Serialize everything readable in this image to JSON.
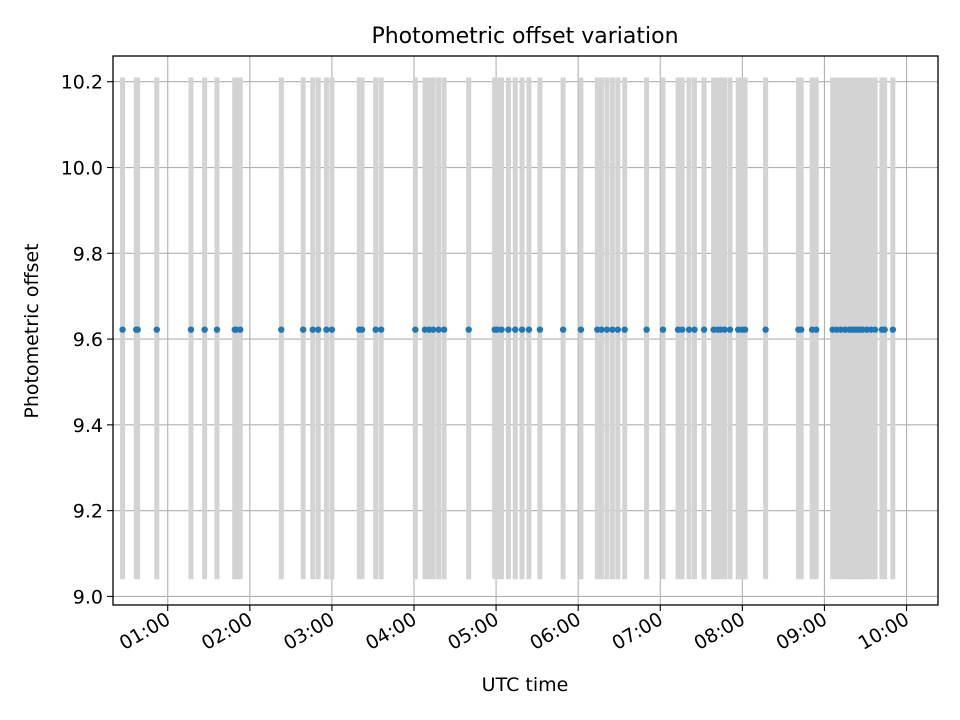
{
  "chart_data": {
    "type": "scatter",
    "title": "Photometric offset variation",
    "xlabel": "UTC time",
    "ylabel": "Photometric offset",
    "xlim": [
      "00:20",
      "10:23"
    ],
    "ylim": [
      8.98,
      10.26
    ],
    "grid": true,
    "x_ticks": [
      "01:00",
      "02:00",
      "03:00",
      "04:00",
      "05:00",
      "06:00",
      "07:00",
      "08:00",
      "09:00",
      "10:00"
    ],
    "y_ticks": [
      9.0,
      9.2,
      9.4,
      9.6,
      9.8,
      10.0,
      10.2
    ],
    "y_tick_labels": [
      "9.0",
      "9.2",
      "9.4",
      "9.6",
      "9.8",
      "10.0",
      "10.2"
    ],
    "error_low": 9.04,
    "error_high": 10.21,
    "colors": {
      "points": "#1f77b4",
      "error_bars": "#d3d3d3"
    },
    "series": [
      {
        "y_constant": 9.622,
        "x": [
          "00:27",
          "00:37",
          "00:38",
          "00:52",
          "01:17",
          "01:27",
          "01:36",
          "01:49",
          "01:50",
          "01:53",
          "02:23",
          "02:39",
          "02:46",
          "02:50",
          "02:56",
          "03:00",
          "03:20",
          "03:22",
          "03:32",
          "03:36",
          "04:01",
          "04:08",
          "04:11",
          "04:14",
          "04:18",
          "04:22",
          "04:40",
          "04:59",
          "05:01",
          "05:04",
          "05:09",
          "05:14",
          "05:19",
          "05:24",
          "05:32",
          "05:49",
          "06:02",
          "06:14",
          "06:17",
          "06:21",
          "06:25",
          "06:29",
          "06:34",
          "06:50",
          "07:02",
          "07:13",
          "07:16",
          "07:21",
          "07:25",
          "07:32",
          "07:39",
          "07:42",
          "07:44",
          "07:47",
          "07:51",
          "07:57",
          "08:00",
          "08:02",
          "08:17",
          "08:41",
          "08:43",
          "08:51",
          "08:54",
          "09:06",
          "09:09",
          "09:12",
          "09:15",
          "09:18",
          "09:20",
          "09:22",
          "09:24",
          "09:26",
          "09:28",
          "09:31",
          "09:34",
          "09:37",
          "09:42",
          "09:44",
          "09:50"
        ]
      }
    ]
  }
}
